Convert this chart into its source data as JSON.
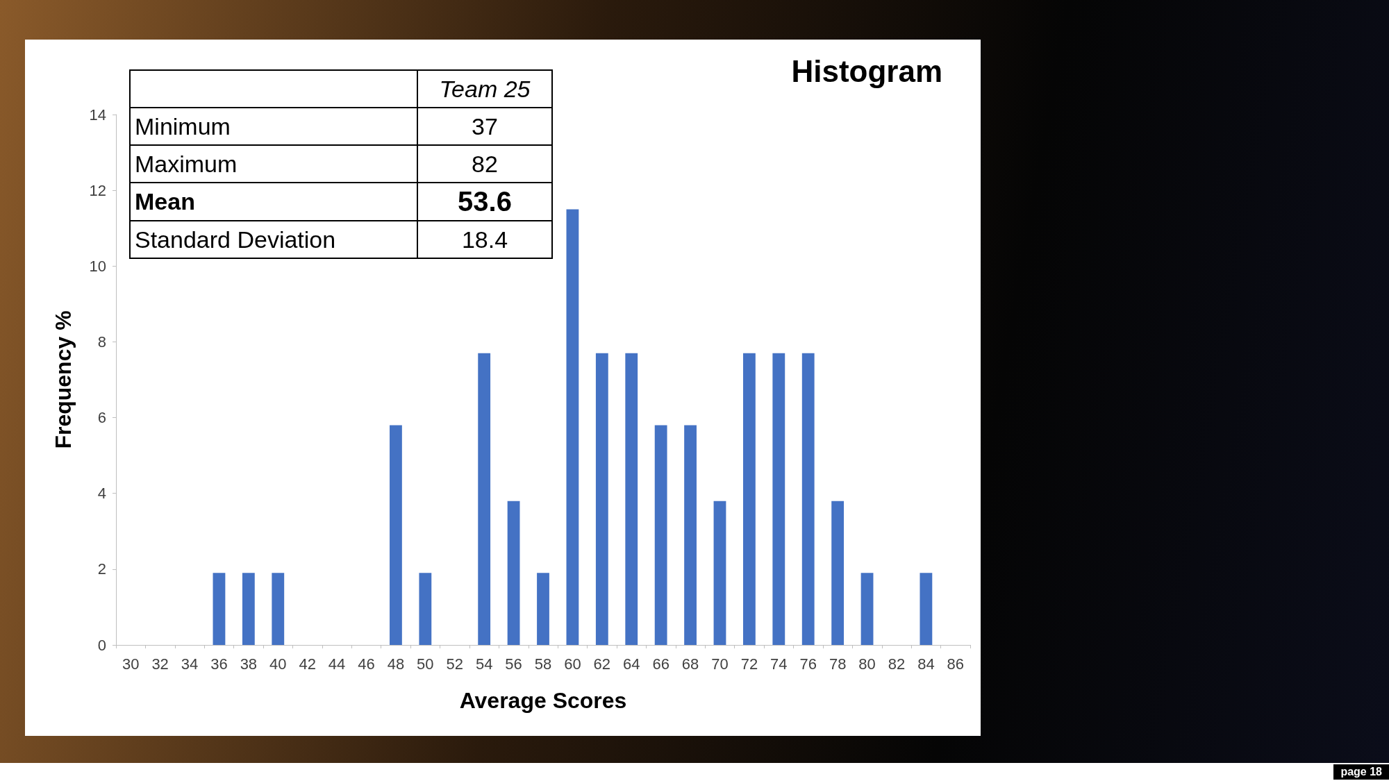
{
  "chart_data": {
    "type": "bar",
    "title": "Histogram",
    "xlabel": "Average Scores",
    "ylabel": "Frequency %",
    "categories": [
      "30",
      "32",
      "34",
      "36",
      "38",
      "40",
      "42",
      "44",
      "46",
      "48",
      "50",
      "52",
      "54",
      "56",
      "58",
      "60",
      "62",
      "64",
      "66",
      "68",
      "70",
      "72",
      "74",
      "76",
      "78",
      "80",
      "82",
      "84",
      "86"
    ],
    "values": [
      0,
      0,
      0,
      1.9,
      1.9,
      1.9,
      0,
      0,
      0,
      5.8,
      1.9,
      0,
      7.7,
      3.8,
      1.9,
      11.5,
      7.7,
      7.7,
      5.8,
      5.8,
      3.8,
      7.7,
      7.7,
      7.7,
      3.8,
      1.9,
      0,
      1.9,
      0
    ],
    "color": "#4472c4",
    "ylim": [
      0,
      14
    ],
    "yticks": [
      0,
      2,
      4,
      6,
      8,
      10,
      12,
      14
    ],
    "grid": false,
    "annotations": [
      "Team 25",
      "Minimum",
      "37",
      "Maximum",
      "82",
      "Mean",
      "53.6",
      "Standard Deviation",
      "18.4",
      "page 18"
    ]
  }
}
